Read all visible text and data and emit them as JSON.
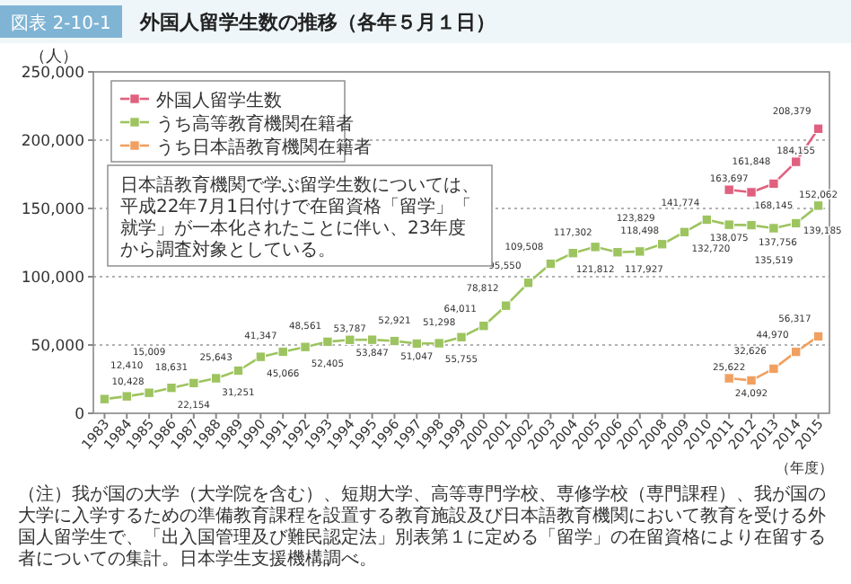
{
  "chart_data": {
    "type": "line",
    "subtitle": "図表 2-10-1",
    "title": "外国人留学生数の推移（各年５月１日）",
    "ylabel": "（人）",
    "xlabel": "（年度）",
    "categories": [
      "1983",
      "1984",
      "1985",
      "1986",
      "1987",
      "1988",
      "1989",
      "1990",
      "1991",
      "1992",
      "1993",
      "1994",
      "1995",
      "1996",
      "1997",
      "1998",
      "1999",
      "2000",
      "2001",
      "2002",
      "2003",
      "2004",
      "2005",
      "2006",
      "2007",
      "2008",
      "2009",
      "2010",
      "2011",
      "2012",
      "2013",
      "2014",
      "2015"
    ],
    "series": [
      {
        "name": "外国人留学生数",
        "color": "#e0607e",
        "values": [
          null,
          null,
          null,
          null,
          null,
          null,
          null,
          null,
          null,
          null,
          null,
          null,
          null,
          null,
          null,
          null,
          null,
          null,
          null,
          null,
          null,
          null,
          null,
          null,
          null,
          null,
          null,
          null,
          163697,
          161848,
          168145,
          184155,
          208379
        ],
        "value_labels": [
          null,
          null,
          null,
          null,
          null,
          null,
          null,
          null,
          null,
          null,
          null,
          null,
          null,
          null,
          null,
          null,
          null,
          null,
          null,
          null,
          null,
          null,
          null,
          null,
          null,
          null,
          null,
          null,
          "163,697",
          "161,848",
          "168,145",
          "184,155",
          "208,379"
        ]
      },
      {
        "name": "うち高等教育機関在籍者",
        "color": "#9dc45f",
        "values": [
          10428,
          12410,
          15009,
          18631,
          22154,
          25643,
          31251,
          41347,
          45066,
          48561,
          52405,
          53787,
          53847,
          52921,
          51047,
          51298,
          55755,
          64011,
          78812,
          95550,
          109508,
          117302,
          121812,
          117927,
          118498,
          123829,
          132720,
          141774,
          138075,
          137756,
          135519,
          139185,
          152062
        ],
        "value_labels": [
          "10,428",
          "12,410",
          "15,009",
          "18,631",
          "22,154",
          "25,643",
          "31,251",
          "41,347",
          "45,066",
          "48,561",
          "52,405",
          "53,787",
          "53,847",
          "52,921",
          "51,047",
          "51,298",
          "55,755",
          "64,011",
          "78,812",
          "95,550",
          "109,508",
          "117,302",
          "121,812",
          "117,927",
          "118,498",
          "123,829",
          "132,720",
          "141,774",
          "138,075",
          "137,756",
          "135,519",
          "139,185",
          "152,062"
        ]
      },
      {
        "name": "うち日本語教育機関在籍者",
        "color": "#f0a060",
        "values": [
          null,
          null,
          null,
          null,
          null,
          null,
          null,
          null,
          null,
          null,
          null,
          null,
          null,
          null,
          null,
          null,
          null,
          null,
          null,
          null,
          null,
          null,
          null,
          null,
          null,
          null,
          null,
          null,
          25622,
          24092,
          32626,
          44970,
          56317
        ],
        "value_labels": [
          null,
          null,
          null,
          null,
          null,
          null,
          null,
          null,
          null,
          null,
          null,
          null,
          null,
          null,
          null,
          null,
          null,
          null,
          null,
          null,
          null,
          null,
          null,
          null,
          null,
          null,
          null,
          null,
          "25,622",
          "24,092",
          "32,626",
          "44,970",
          "56,317"
        ]
      }
    ],
    "ylim": [
      0,
      250000
    ],
    "yticks": [
      {
        "value": 0,
        "label": "0"
      },
      {
        "value": 50000,
        "label": "50,000"
      },
      {
        "value": 100000,
        "label": "100,000"
      },
      {
        "value": 150000,
        "label": "150,000"
      },
      {
        "value": 200000,
        "label": "200,000"
      },
      {
        "value": 250000,
        "label": "250,000"
      }
    ],
    "grid": "y",
    "legend": "top left",
    "marker": "square",
    "line_style": "solid",
    "data_labels": true,
    "annotations": [
      "日本語教育機関で学ぶ留学生数については、平成22年7月1日付けで在留資格「留学」「就学」が一本化されたことに伴い、23年度から調査対象としている。",
      "（注）我が国の大学（大学院を含む）、短期大学、高等専門学校、専修学校（専門課程）、我が国の大学に入学するための準備教育課程を設置する教育施設及び日本語教育機関において教育を受ける外国人留学生で、「出入国管理及び難民認定法」別表第１に定める「留学」の在留資格により在留する者についての集計。日本学生支援機構調べ。"
    ]
  }
}
